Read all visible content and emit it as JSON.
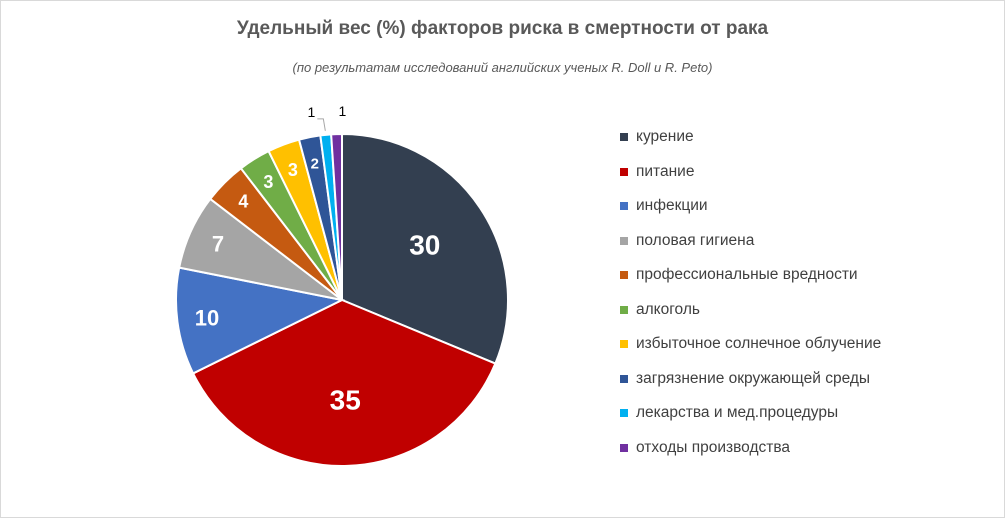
{
  "chart_data": {
    "type": "pie",
    "title": "Удельный вес (%) факторов риска в смертности от рака",
    "subtitle": "(по результатам исследований английских ученых R. Doll и R. Peto)",
    "legend_position": "right",
    "slices": [
      {
        "label": "курение",
        "value": 30,
        "color": "#333f50"
      },
      {
        "label": "питание",
        "value": 35,
        "color": "#c00000"
      },
      {
        "label": "инфекции",
        "value": 10,
        "color": "#4472c4"
      },
      {
        "label": "половая гигиена",
        "value": 7,
        "color": "#a5a5a5"
      },
      {
        "label": "профессиональные вредности",
        "value": 4,
        "color": "#c55a11"
      },
      {
        "label": "алкоголь",
        "value": 3,
        "color": "#70ad47"
      },
      {
        "label": "избыточное солнечное облучение",
        "value": 3,
        "color": "#ffc000"
      },
      {
        "label": "загрязнение окружающей среды",
        "value": 2,
        "color": "#2f5597"
      },
      {
        "label": "лекарства и мед.процедуры",
        "value": 1,
        "color": "#00b0f0"
      },
      {
        "label": "отходы производства",
        "value": 1,
        "color": "#7030a0"
      }
    ]
  }
}
